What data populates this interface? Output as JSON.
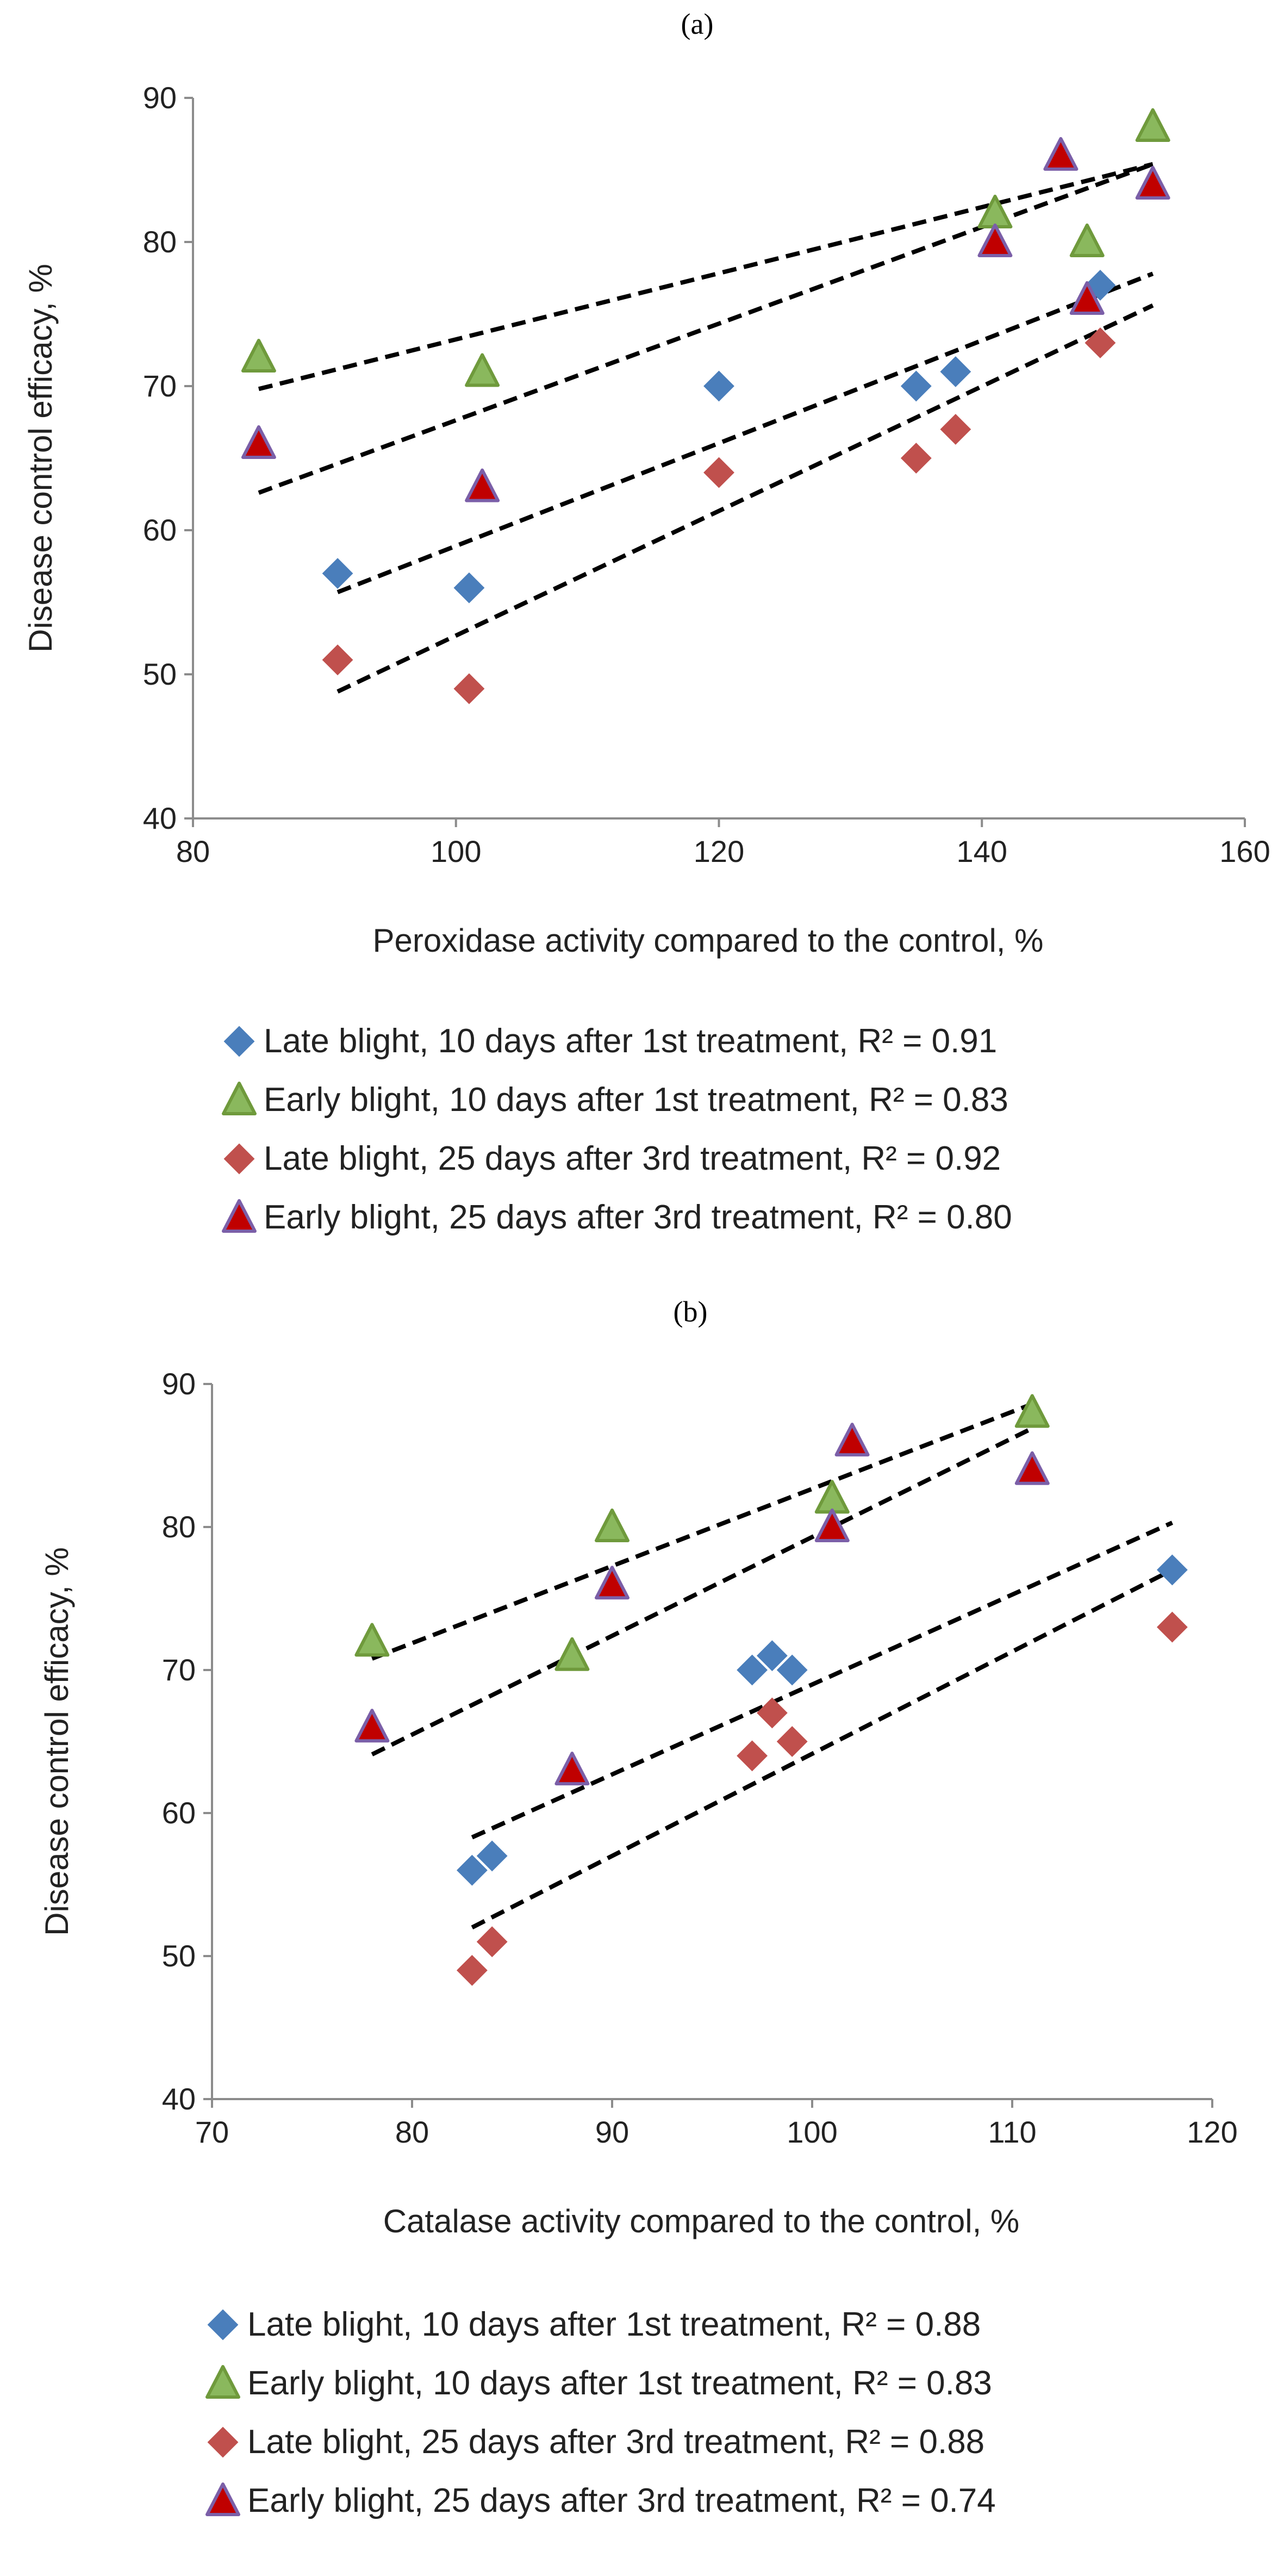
{
  "chart_data": [
    {
      "type": "scatter",
      "panel_label": "(a)",
      "title": "",
      "xlabel": "Peroxidase activity compared to the control, %",
      "ylabel": "Disease control efficacy, %",
      "xlim": [
        80,
        160
      ],
      "ylim": [
        40,
        90
      ],
      "xticks": [
        80,
        100,
        120,
        140,
        160
      ],
      "yticks": [
        40,
        50,
        60,
        70,
        80,
        90
      ],
      "grid": false,
      "legend_position": "bottom",
      "series": [
        {
          "name": "Late blight, 10 days after 1st treatment, R² = 0.91",
          "marker": "diamond",
          "fill": "#4a7ebb",
          "stroke": "#4a7ebb",
          "points": [
            [
              91,
              57
            ],
            [
              101,
              56
            ],
            [
              120,
              70
            ],
            [
              135,
              70
            ],
            [
              138,
              71
            ],
            [
              149,
              77
            ]
          ],
          "trendline": [
            [
              91,
              55.7
            ],
            [
              153,
              77.8
            ]
          ]
        },
        {
          "name": "Early blight, 10 days after 1st treatment, R² = 0.83",
          "marker": "triangle",
          "fill": "#8ab85d",
          "stroke": "#6f9a3c",
          "points": [
            [
              85,
              72
            ],
            [
              102,
              71
            ],
            [
              141,
              82
            ],
            [
              148,
              80
            ],
            [
              153,
              88
            ]
          ],
          "trendline": [
            [
              85,
              69.8
            ],
            [
              153,
              85.4
            ]
          ]
        },
        {
          "name": "Late blight, 25 days after 3rd treatment, R² = 0.92",
          "marker": "diamond",
          "fill": "#c0504d",
          "stroke": "#c0504d",
          "points": [
            [
              91,
              51
            ],
            [
              101,
              49
            ],
            [
              120,
              64
            ],
            [
              135,
              65
            ],
            [
              138,
              67
            ],
            [
              149,
              73
            ]
          ],
          "trendline": [
            [
              91,
              48.8
            ],
            [
              153,
              75.6
            ]
          ]
        },
        {
          "name": "Early blight, 25 days after 3rd treatment, R² = 0.80",
          "marker": "triangle",
          "fill": "#c00000",
          "stroke": "#7b5fa8",
          "points": [
            [
              85,
              66
            ],
            [
              102,
              63
            ],
            [
              141,
              80
            ],
            [
              146,
              86
            ],
            [
              148,
              76
            ],
            [
              153,
              84
            ]
          ],
          "trendline": [
            [
              85,
              62.6
            ],
            [
              153,
              85.4
            ]
          ]
        }
      ]
    },
    {
      "type": "scatter",
      "panel_label": "(b)",
      "title": "",
      "xlabel": "Catalase activity compared to the control, %",
      "ylabel": "Disease control efficacy, %",
      "xlim": [
        70,
        120
      ],
      "ylim": [
        40,
        90
      ],
      "xticks": [
        70,
        80,
        90,
        100,
        110,
        120
      ],
      "yticks": [
        40,
        50,
        60,
        70,
        80,
        90
      ],
      "grid": false,
      "legend_position": "bottom",
      "series": [
        {
          "name": "Late blight, 10 days after 1st treatment, R² = 0.88",
          "marker": "diamond",
          "fill": "#4a7ebb",
          "stroke": "#4a7ebb",
          "points": [
            [
              83,
              56
            ],
            [
              84,
              57
            ],
            [
              97,
              70
            ],
            [
              98,
              71
            ],
            [
              99,
              70
            ],
            [
              118,
              77
            ]
          ],
          "trendline": [
            [
              83,
              58.3
            ],
            [
              118,
              80.3
            ]
          ]
        },
        {
          "name": "Early blight, 10 days after 1st treatment, R² = 0.83",
          "marker": "triangle",
          "fill": "#8ab85d",
          "stroke": "#6f9a3c",
          "points": [
            [
              78,
              72
            ],
            [
              88,
              71
            ],
            [
              90,
              80
            ],
            [
              101,
              82
            ],
            [
              111,
              88
            ]
          ],
          "trendline": [
            [
              78,
              70.8
            ],
            [
              111,
              88.6
            ]
          ]
        },
        {
          "name": "Late blight, 25 days after 3rd treatment, R² = 0.88",
          "marker": "diamond",
          "fill": "#c0504d",
          "stroke": "#c0504d",
          "points": [
            [
              83,
              49
            ],
            [
              84,
              51
            ],
            [
              97,
              64
            ],
            [
              98,
              67
            ],
            [
              99,
              65
            ],
            [
              118,
              73
            ]
          ],
          "trendline": [
            [
              83,
              52
            ],
            [
              118,
              77
            ]
          ]
        },
        {
          "name": "Early blight, 25 days after 3rd treatment, R² = 0.74",
          "marker": "triangle",
          "fill": "#c00000",
          "stroke": "#7b5fa8",
          "points": [
            [
              78,
              66
            ],
            [
              88,
              63
            ],
            [
              90,
              76
            ],
            [
              101,
              80
            ],
            [
              102,
              86
            ],
            [
              111,
              84
            ]
          ],
          "trendline": [
            [
              78,
              64.1
            ],
            [
              111,
              86.9
            ]
          ]
        }
      ]
    }
  ]
}
